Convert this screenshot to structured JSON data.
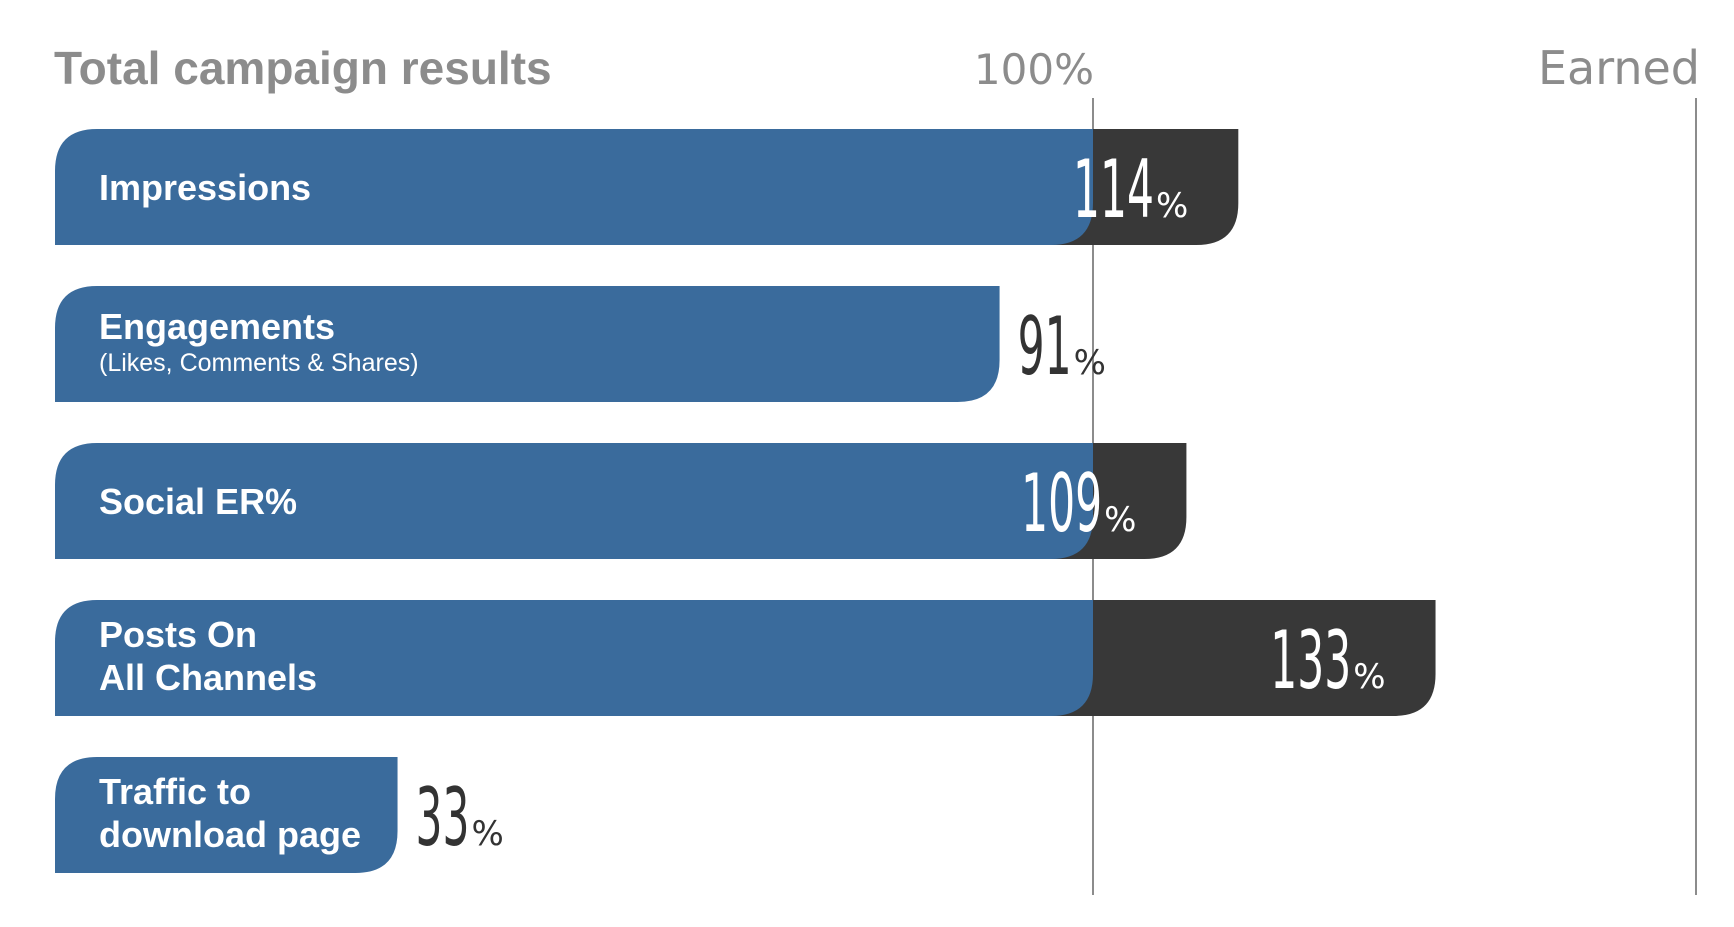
{
  "chart_data": {
    "type": "bar",
    "orientation": "horizontal",
    "title": "Total campaign results",
    "reference_label": "100%",
    "reference_value": 100,
    "earned_label": "Earned",
    "xlim": [
      0,
      140
    ],
    "categories": [
      {
        "label": [
          "Impressions"
        ],
        "sublabel": "",
        "value": 114,
        "display": "114",
        "unit": "%"
      },
      {
        "label": [
          "Engagements"
        ],
        "sublabel": "(Likes, Comments & Shares)",
        "value": 91,
        "display": "91",
        "unit": "%"
      },
      {
        "label": [
          "Social ER%"
        ],
        "sublabel": "",
        "value": 109,
        "display": "109",
        "unit": "%"
      },
      {
        "label": [
          "Posts On",
          "All Channels"
        ],
        "sublabel": "",
        "value": 133,
        "display": "133",
        "unit": "%"
      },
      {
        "label": [
          "Traffic to",
          "download page"
        ],
        "sublabel": "",
        "value": 33,
        "display": "33",
        "unit": "%"
      }
    ],
    "colors": {
      "base": "#3a6b9c",
      "over": "#383838",
      "label": "#ffffff",
      "value_outside": "#333333",
      "value_inside": "#ffffff",
      "title": "#8c8c8c",
      "rule": "#8c8c8c"
    }
  }
}
